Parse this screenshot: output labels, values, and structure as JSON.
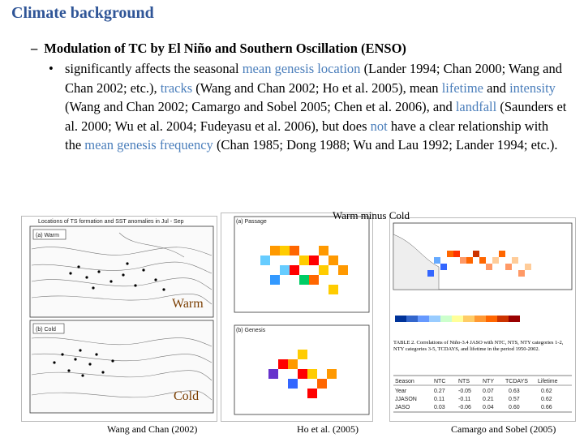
{
  "slide": {
    "title": "Climate background",
    "heading": "Modulation of TC by El Niño and Southern Oscillation (ENSO)",
    "bullet": {
      "t1": "significantly affects the seasonal ",
      "h1": "mean genesis location",
      "t2": " (Lander 1994; Chan 2000; Wang and Chan 2002; etc.), ",
      "h2": "tracks",
      "t3": " (Wang and Chan 2002; Ho et al. 2005), mean ",
      "h3": "lifetime",
      "t4": " and ",
      "h4": "intensity",
      "t5": " (Wang and Chan 2002; Camargo and Sobel 2005; Chen et al. 2006), and ",
      "h5": "landfall",
      "t6": " (Saunders et al. 2000; Wu et al. 2004; Fudeyasu et al. 2006), but does ",
      "h6": "not",
      "t7": " have a clear relationship with the ",
      "h7": "mean genesis frequency",
      "t8": " (Chan 1985; Dong 1988; Wu and Lau 1992; Lander 1994; etc.)."
    }
  },
  "figures": {
    "left_title": "Locations of TS formation and SST anomalies in Jul - Sep",
    "left_warm_label": "(a) Warm",
    "left_cold_label": "(b) Cold",
    "overlay_warm": "Warm",
    "overlay_cold": "Cold",
    "overlay_warm_minus_cold": "Warm minus Cold",
    "mid_passage_label": "(a) Passage",
    "mid_genesis_label": "(b) Genesis",
    "table_caption": "TABLE 2. Correlations of Niño-3.4 JASO with NTC, NTS, NTY categories 1-2, NTY categories 3-5, TCDAYS, and lifetime in the period 1950-2002.",
    "table_headers": [
      "Season",
      "NTC",
      "NTS",
      "NTY",
      "TCDAYS",
      "Lifetime"
    ],
    "table_rows": [
      [
        "Year",
        "0.27",
        "-0.05",
        "0.07",
        "0.63",
        "0.62"
      ],
      [
        "JJASON",
        "0.11",
        "-0.11",
        "0.21",
        "0.57",
        "0.62"
      ],
      [
        "JASO",
        "0.03",
        "-0.06",
        "0.04",
        "0.60",
        "0.66"
      ]
    ]
  },
  "captions": {
    "left": "Wang and Chan (2002)",
    "middle": "Ho et al. (2005)",
    "right": "Camargo and Sobel (2005)"
  }
}
